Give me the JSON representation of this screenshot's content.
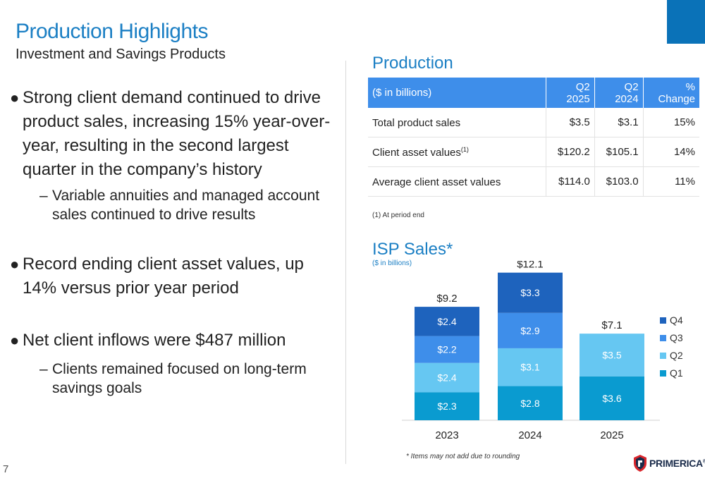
{
  "header": {
    "title": "Production Highlights",
    "subtitle": "Investment and Savings Products"
  },
  "bullets": [
    {
      "text": "Strong client demand continued to drive product sales, increasing 15% year-over-year, resulting in the second largest quarter in the company’s history",
      "sub": "Variable annuities and managed account sales continued to drive results"
    },
    {
      "text": "Record ending client asset values, up 14% versus prior year period",
      "sub": ""
    },
    {
      "text": "Net client inflows were $487 million",
      "sub": "Clients remained focused on long-term savings goals"
    }
  ],
  "production": {
    "title": "Production",
    "headers": [
      "($ in billions)",
      "Q2 2025",
      "Q2 2024",
      "% Change"
    ],
    "rows": [
      {
        "label": "Total product sales",
        "sup": "",
        "q2_2025": "$3.5",
        "q2_2024": "$3.1",
        "change": "15%"
      },
      {
        "label": "Client asset values",
        "sup": "(1)",
        "q2_2025": "$120.2",
        "q2_2024": "$105.1",
        "change": "14%"
      },
      {
        "label": "Average client asset values",
        "sup": "",
        "q2_2025": "$114.0",
        "q2_2024": "$103.0",
        "change": "11%"
      }
    ],
    "footnote": "(1) At period end"
  },
  "chart_data": {
    "type": "bar",
    "stacked": true,
    "title": "ISP Sales*",
    "subtitle": "($ in billions)",
    "categories": [
      "2023",
      "2024",
      "2025"
    ],
    "series": [
      {
        "name": "Q1",
        "color": "#0a9bd0",
        "values": [
          2.3,
          2.8,
          3.6
        ],
        "labels": [
          "$2.3",
          "$2.8",
          "$3.6"
        ]
      },
      {
        "name": "Q2",
        "color": "#66c7f2",
        "values": [
          2.4,
          3.1,
          3.5
        ],
        "labels": [
          "$2.4",
          "$3.1",
          "$3.5"
        ]
      },
      {
        "name": "Q3",
        "color": "#3e8eea",
        "values": [
          2.2,
          2.9,
          null
        ],
        "labels": [
          "$2.2",
          "$2.9",
          ""
        ]
      },
      {
        "name": "Q4",
        "color": "#1e63bd",
        "values": [
          2.4,
          3.3,
          null
        ],
        "labels": [
          "$2.4",
          "$3.3",
          ""
        ]
      }
    ],
    "totals": [
      "$9.2",
      "$12.1",
      "$7.1"
    ],
    "legend": [
      "Q4",
      "Q3",
      "Q2",
      "Q1"
    ],
    "legend_position": "right",
    "grid": false,
    "ylim": [
      0,
      13
    ],
    "note": "* Items may not add due to rounding"
  },
  "footer": {
    "page_number": "7",
    "logo_text": "PRIMERICA",
    "logo_mark": "®"
  },
  "colors": {
    "brand_blue": "#1b7fc4",
    "corner_block": "#0a72b8",
    "table_header": "#3e8eea"
  }
}
